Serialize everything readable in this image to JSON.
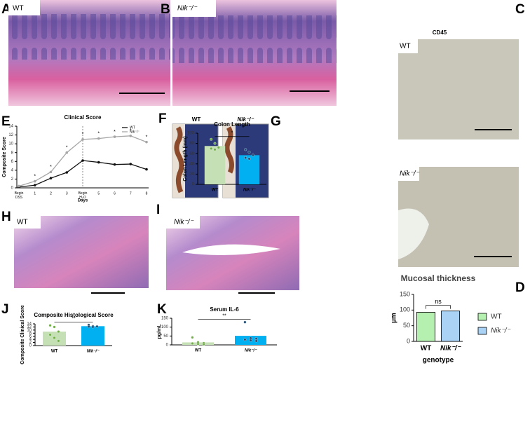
{
  "panel_labels": [
    "A",
    "B",
    "C",
    "D",
    "E",
    "F",
    "G",
    "H",
    "I",
    "J",
    "K"
  ],
  "image_labels": {
    "A": "WT",
    "B": "Nik⁻/⁻",
    "C_title": "CD45",
    "C_top": "WT",
    "C_bottom": "Nik⁻/⁻",
    "F_left": "WT",
    "F_right": "Nik⁻/⁻",
    "H": "WT",
    "I": "Nik⁻/⁻"
  },
  "chart_data": [
    {
      "type": "line",
      "title": "Clinical Score",
      "ylabel": "Composite Score",
      "xlabel": "Days",
      "categories": [
        "Begin DSS",
        "1",
        "2",
        "3",
        "Begin H₂O",
        "5",
        "6",
        "7",
        "8"
      ],
      "series": [
        {
          "name": "WT",
          "color": "#111111",
          "values": [
            0.2,
            0.6,
            2.2,
            3.5,
            6.2,
            5.8,
            5.3,
            5.4,
            4.2
          ]
        },
        {
          "name": "Nik⁻/⁻",
          "color": "#a6a6a6",
          "values": [
            0.4,
            1.5,
            3.6,
            8,
            11,
            11.2,
            11.6,
            11.8,
            10.4
          ]
        }
      ],
      "significance": [
        null,
        "*",
        "*",
        "*",
        "*",
        "*",
        "*",
        "*",
        "*"
      ],
      "ylim": [
        0,
        14
      ],
      "yticks": [
        0,
        2,
        4,
        6,
        8,
        10,
        12,
        14
      ],
      "legend": "upper right"
    },
    {
      "type": "bar",
      "title": "Colon Length",
      "ylabel": "Colon Length (mm)",
      "categories": [
        "WT",
        "Nik⁻/⁻"
      ],
      "values": [
        75,
        57
      ],
      "colors": [
        "#c5e0b4",
        "#00b0f0"
      ],
      "points": [
        [
          88,
          80,
          72,
          70,
          68
        ],
        [
          68,
          63,
          57,
          52,
          50
        ]
      ],
      "point_colors": [
        "#70ad47",
        "#1f4e79"
      ],
      "significance": "*",
      "ylim": [
        0,
        100
      ],
      "yticks": [
        0,
        20,
        40,
        60,
        80,
        100
      ]
    },
    {
      "type": "bar",
      "title": "Mucosal thickness",
      "ylabel": "µm",
      "xlabel": "genotype",
      "categories": [
        "WT",
        "Nik⁻/⁻"
      ],
      "values": [
        93,
        97
      ],
      "colors": [
        "#b6f0b0",
        "#a9d2f5"
      ],
      "significance": "ns",
      "ylim": [
        0,
        150
      ],
      "yticks": [
        0,
        50,
        100,
        150
      ],
      "legend": "outside right"
    },
    {
      "type": "bar",
      "title": "Composite Histological Score",
      "ylabel": "Composite Clinical Score",
      "categories": [
        "WT",
        "Nik⁻/⁻"
      ],
      "values": [
        9,
        12.5
      ],
      "colors": [
        "#c5e0b4",
        "#00b0f0"
      ],
      "points": [
        [
          13,
          12,
          9,
          7,
          5,
          3
        ],
        [
          13.3,
          12.5,
          12.3,
          12.2,
          12
        ]
      ],
      "point_colors": [
        "#70ad47",
        "#1f4e79"
      ],
      "significance": "**",
      "ylim": [
        0,
        14
      ],
      "yticks": [
        0,
        2,
        4,
        6,
        8,
        10,
        12,
        14
      ]
    },
    {
      "type": "bar",
      "title": "Serum IL-6",
      "ylabel": "pg/mL",
      "categories": [
        "WT",
        "Nik⁻/⁻"
      ],
      "values": [
        14,
        51
      ],
      "colors": [
        "#c5e0b4",
        "#00b0f0"
      ],
      "points": [
        [
          42,
          15,
          10,
          8,
          5,
          3
        ],
        [
          128,
          38,
          35,
          30,
          25,
          22
        ]
      ],
      "point_colors": [
        "#70ad47",
        "#1f4e79"
      ],
      "significance": "**",
      "ylim": [
        0,
        150
      ],
      "yticks": [
        0,
        50,
        100,
        150
      ]
    }
  ]
}
